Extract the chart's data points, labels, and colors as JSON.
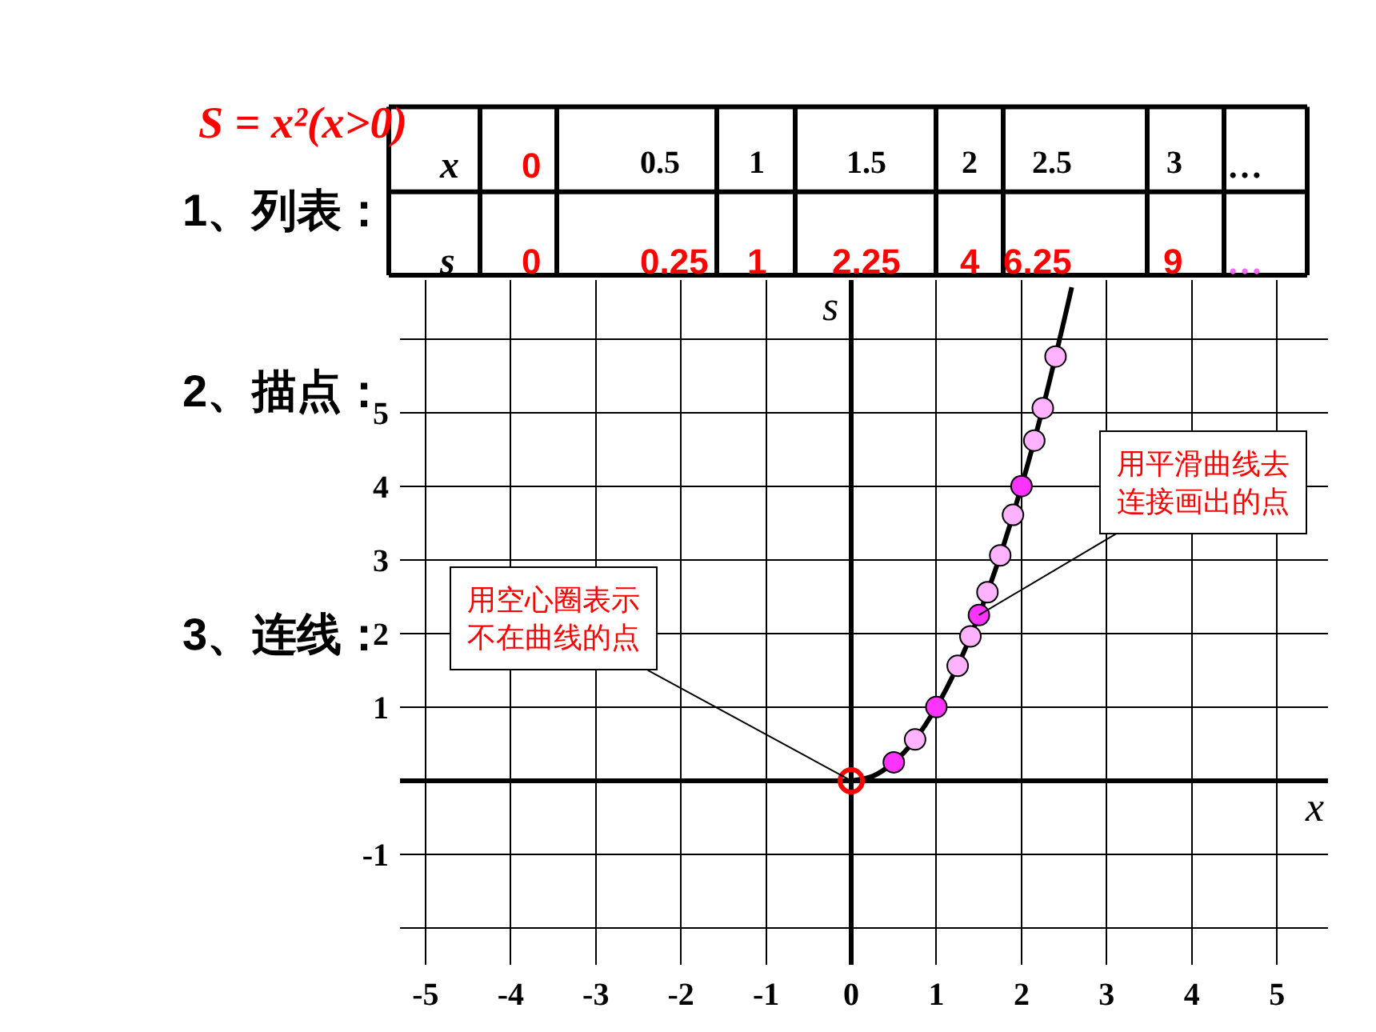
{
  "chart_data": {
    "type": "scatter",
    "title": "S = x²(x>0)",
    "xlabel": "x",
    "ylabel": "s",
    "xlim": [
      -5.3,
      5.6
    ],
    "ylim": [
      -2.5,
      6.8
    ],
    "xticks": [
      -5,
      -4,
      -3,
      -2,
      -1,
      0,
      1,
      2,
      3,
      4,
      5
    ],
    "yticks": [
      {
        "value": -2,
        "label": null
      },
      -1,
      {
        "value": 0,
        "label": null
      },
      1,
      2,
      3,
      4,
      5,
      {
        "value": 6,
        "label": null
      }
    ],
    "grid": true,
    "series": [
      {
        "type": "line",
        "color": "#000000",
        "marker": "none",
        "x": [
          0,
          0.25,
          0.5,
          0.75,
          1,
          1.25,
          1.5,
          1.75,
          2,
          2.25,
          2.5,
          2.59
        ],
        "values": [
          0,
          0.06,
          0.25,
          0.56,
          1,
          1.56,
          2.25,
          3.06,
          4,
          5.06,
          6.25,
          6.7
        ]
      },
      {
        "marker": "circle",
        "x": [
          0.5,
          0.75,
          1,
          1.25,
          1.4,
          1.5,
          1.6,
          1.75,
          1.9,
          2,
          2.15,
          2.25,
          2.4
        ],
        "values": [
          0.25,
          0.56,
          1,
          1.56,
          1.96,
          2.25,
          2.56,
          3.06,
          3.61,
          4,
          4.62,
          5.06,
          5.76
        ],
        "colors": [
          "#ff33ff",
          "#ffb3ff",
          "#ff33ff",
          "#ffb3ff",
          "#ffb3ff",
          "#ff33ff",
          "#ffb3ff",
          "#ffb3ff",
          "#ffb3ff",
          "#ff33ff",
          "#ffb3ff",
          "#ffb3ff",
          "#ffb3ff"
        ]
      },
      {
        "marker": "circle-open",
        "color": "#ff0000",
        "x": [
          0
        ],
        "values": [
          0
        ]
      }
    ],
    "annotations": [
      "1、列表：",
      "2、描点：",
      "3、连线：",
      "x",
      "0",
      "0.5",
      "1",
      "1.5",
      "2",
      "2.5",
      "3",
      "…",
      "s",
      "0",
      "0.25",
      "1",
      "2.25",
      "4",
      "6.25",
      "9",
      "…",
      {
        "text": "用空心圈表示不在曲线的点",
        "x": 0,
        "y": 0
      },
      {
        "text": "用平滑曲线去连接画出的点",
        "x": 1.5,
        "y": 2.25
      }
    ]
  }
}
